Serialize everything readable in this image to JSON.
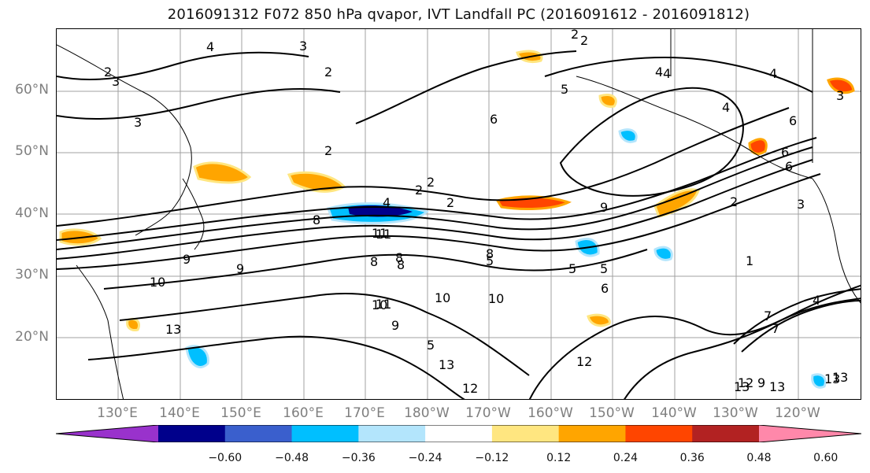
{
  "title": "2016091312 F072 850 hPa qvapor, IVT Landfall PC (2016091612 - 2016091812)",
  "lat_labels": [
    "60°N",
    "50°N",
    "40°N",
    "30°N",
    "20°N"
  ],
  "lon_labels": [
    "130°E",
    "140°E",
    "150°E",
    "160°E",
    "170°E",
    "180°W",
    "170°W",
    "160°W",
    "150°W",
    "140°W",
    "130°W",
    "120°W"
  ],
  "colorbar": {
    "ticks": [
      "−0.60",
      "−0.48",
      "−0.36",
      "−0.24",
      "−0.12",
      "0.12",
      "0.24",
      "0.36",
      "0.48",
      "0.60"
    ],
    "colors": [
      "#9932cc",
      "#00008b",
      "#3a5fcd",
      "#00bfff",
      "#b3e5fc",
      "#ffffff",
      "#ffe680",
      "#ffa500",
      "#ff4500",
      "#b22222",
      "#ff88aa"
    ]
  },
  "contour_labels": [
    "4",
    "3",
    "2",
    "2",
    "4",
    "3",
    "2",
    "5",
    "4",
    "3",
    "2",
    "2",
    "6",
    "8",
    "4",
    "2",
    "2",
    "9",
    "9",
    "6",
    "5",
    "10",
    "11",
    "8",
    "9",
    "11",
    "8",
    "5",
    "6",
    "10",
    "8",
    "10",
    "9",
    "10",
    "5",
    "13",
    "12",
    "13",
    "12",
    "13",
    "13",
    "3",
    "5",
    "4",
    "13",
    "1",
    "6",
    "4",
    "12",
    "7",
    "8",
    "7",
    "13",
    "3",
    "6",
    "2",
    "2",
    "9",
    "11",
    "4"
  ],
  "colors": {
    "positive": "#ffa500",
    "negative": "#00bfff",
    "contour": "#000000",
    "grid": "#a0a0a0"
  }
}
